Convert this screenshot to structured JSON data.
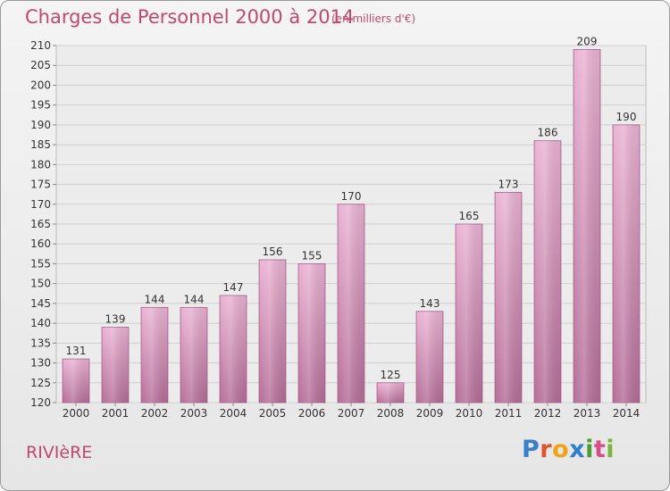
{
  "header": {
    "title": "Charges de Personnel 2000 à 2014",
    "subtitle": "(en milliers d'€)"
  },
  "footer": {
    "commune": "RIVIèRE",
    "logo_letters": [
      "P",
      "r",
      "o",
      "x",
      "i",
      "t",
      "i"
    ],
    "logo_colors": [
      "#3a7fc8",
      "#e0532b",
      "#f2a21a",
      "#2f7fd0",
      "#4a9d34",
      "#d94c8a",
      "#7ab43c"
    ]
  },
  "colors": {
    "bar_light": "#e8aed0",
    "bar_dark": "#b56e98",
    "grid": "#cfcfcf",
    "text": "#333333",
    "accent": "#c04870"
  },
  "chart_data": {
    "type": "bar",
    "categories": [
      "2000",
      "2001",
      "2002",
      "2003",
      "2004",
      "2005",
      "2006",
      "2007",
      "2008",
      "2009",
      "2010",
      "2011",
      "2012",
      "2013",
      "2014"
    ],
    "values": [
      131,
      139,
      144,
      144,
      147,
      156,
      155,
      170,
      125,
      143,
      165,
      173,
      186,
      209,
      190
    ],
    "title": "Charges de Personnel 2000 à 2014",
    "subtitle": "(en milliers d'€)",
    "xlabel": "",
    "ylabel": "",
    "ylim": [
      120,
      210
    ],
    "yticks": [
      120,
      125,
      130,
      135,
      140,
      145,
      150,
      155,
      160,
      165,
      170,
      175,
      180,
      185,
      190,
      195,
      200,
      205,
      210
    ],
    "grid": true
  }
}
